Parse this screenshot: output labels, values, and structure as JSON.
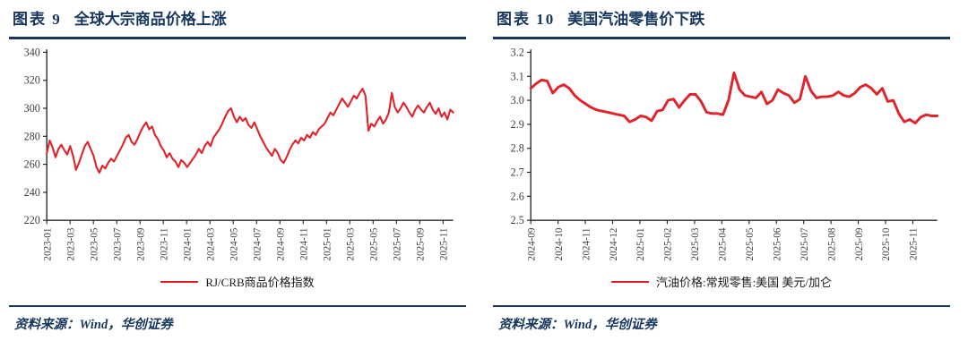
{
  "colors": {
    "navy": "#17375e",
    "line_red": "#e0242b",
    "axis": "#262626",
    "tick_text": "#3d3d3d"
  },
  "figures": [
    {
      "label": "图表 9",
      "title": "全球大宗商品价格上涨",
      "legend": "RJ/CRB商品价格指数",
      "source": "资料来源：Wind，华创证券"
    },
    {
      "label": "图表 10",
      "title": "美国汽油零售价下跌",
      "legend": "汽油价格:常规零售:美国 美元/加仑",
      "source": "资料来源：Wind，华创证券"
    }
  ],
  "chart_data": [
    {
      "type": "line",
      "title": "全球大宗商品价格上涨",
      "legend_position": "bottom",
      "grid": false,
      "ylim": [
        220,
        340
      ],
      "yticks": [
        220,
        240,
        260,
        280,
        300,
        320,
        340
      ],
      "ydecimals": 0,
      "xtick_end_frac": 0.975,
      "xticks": [
        "2023-01",
        "2023-03",
        "2023-05",
        "2023-07",
        "2023-09",
        "2023-11",
        "2024-01",
        "2024-03",
        "2024-05",
        "2024-07",
        "2024-09",
        "2024-11",
        "2025-01",
        "2025-03",
        "2025-05",
        "2025-07",
        "2025-09",
        "2025-11"
      ],
      "series": [
        {
          "name": "RJ/CRB商品价格指数",
          "color": "#e0242b",
          "width": 2,
          "values": [
            268,
            277,
            272,
            265,
            271,
            274,
            270,
            267,
            273,
            266,
            256,
            261,
            267,
            273,
            276,
            271,
            266,
            258,
            254,
            259,
            257,
            261,
            264,
            262,
            266,
            270,
            274,
            279,
            281,
            276,
            274,
            278,
            283,
            287,
            290,
            285,
            287,
            281,
            278,
            273,
            270,
            265,
            268,
            264,
            262,
            258,
            263,
            261,
            258,
            261,
            264,
            267,
            271,
            268,
            273,
            276,
            273,
            279,
            282,
            285,
            289,
            294,
            298,
            300,
            294,
            290,
            294,
            291,
            293,
            288,
            286,
            290,
            285,
            280,
            276,
            272,
            269,
            266,
            271,
            268,
            263,
            261,
            265,
            270,
            274,
            277,
            275,
            279,
            277,
            281,
            279,
            283,
            281,
            285,
            287,
            289,
            293,
            297,
            295,
            299,
            303,
            307,
            304,
            301,
            305,
            309,
            307,
            311,
            314,
            309,
            284,
            289,
            287,
            291,
            294,
            289,
            292,
            297,
            311,
            301,
            297,
            300,
            304,
            301,
            297,
            294,
            299,
            302,
            299,
            297,
            301,
            304,
            299,
            296,
            300,
            294,
            297,
            292,
            299,
            297
          ]
        }
      ]
    },
    {
      "type": "line",
      "title": "美国汽油零售价下跌",
      "legend_position": "bottom",
      "grid": false,
      "ylim": [
        2.5,
        3.2
      ],
      "yticks": [
        2.5,
        2.6,
        2.7,
        2.8,
        2.9,
        3.0,
        3.1,
        3.2
      ],
      "ydecimals": 1,
      "xtick_end_frac": 0.94,
      "xticks": [
        "2024-09",
        "2024-10",
        "2024-11",
        "2024-12",
        "2025-01",
        "2025-02",
        "2025-03",
        "2025-04",
        "2025-05",
        "2025-06",
        "2025-07",
        "2025-08",
        "2025-09",
        "2025-10",
        "2025-11"
      ],
      "series": [
        {
          "name": "汽油价格:常规零售:美国 美元/加仑",
          "color": "#e0242b",
          "width": 2.8,
          "values": [
            3.05,
            3.07,
            3.085,
            3.08,
            3.03,
            3.055,
            3.065,
            3.05,
            3.02,
            3.0,
            2.985,
            2.97,
            2.96,
            2.955,
            2.95,
            2.945,
            2.94,
            2.935,
            2.91,
            2.92,
            2.935,
            2.93,
            2.915,
            2.955,
            2.96,
            3.0,
            3.005,
            2.97,
            3.0,
            3.025,
            3.025,
            2.995,
            2.95,
            2.945,
            2.945,
            2.94,
            3.0,
            3.115,
            3.045,
            3.02,
            3.015,
            3.01,
            3.035,
            2.985,
            3.0,
            3.045,
            3.03,
            3.02,
            2.99,
            3.005,
            3.1,
            3.04,
            3.01,
            3.015,
            3.015,
            3.02,
            3.035,
            3.02,
            3.015,
            3.03,
            3.055,
            3.065,
            3.05,
            3.025,
            3.05,
            2.995,
            3.0,
            2.945,
            2.91,
            2.92,
            2.905,
            2.93,
            2.94,
            2.935,
            2.935
          ]
        }
      ]
    }
  ]
}
